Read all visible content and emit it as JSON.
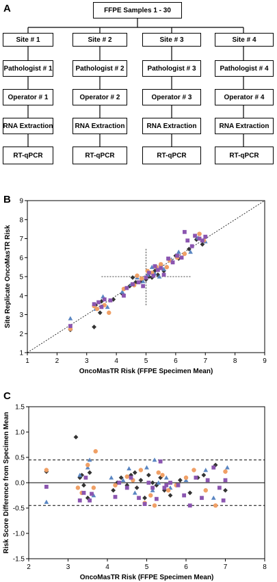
{
  "panels": {
    "a": "A",
    "b": "B",
    "c": "C"
  },
  "flowchart": {
    "top": "FFPE Samples 1 - 30",
    "columns": [
      [
        "Site # 1",
        "Pathologist # 1",
        "Operator # 1",
        "RNA Extraction",
        "RT-qPCR"
      ],
      [
        "Site # 2",
        "Pathologist # 2",
        "Operator # 2",
        "RNA Extraction",
        "RT-qPCR"
      ],
      [
        "Site # 3",
        "Pathologist # 3",
        "Operator # 3",
        "RNA Extraction",
        "RT-qPCR"
      ],
      [
        "Site # 4",
        "Pathologist # 4",
        "Operator # 4",
        "RNA Extraction",
        "RT-qPCR"
      ]
    ]
  },
  "colors": {
    "orange": "#f0a066",
    "blue": "#5a86c2",
    "purple": "#8b55b0",
    "black": "#333333"
  },
  "chart_data": [
    {
      "type": "scatter",
      "panel": "B",
      "xlabel": "OncoMasTR Risk (FFPE Specimen Mean)",
      "ylabel": "Site Replicate OncoMasTR Risk",
      "xlim": [
        1,
        9
      ],
      "ylim": [
        1,
        9
      ],
      "xticks": [
        "1",
        "2",
        "3",
        "4",
        "5",
        "6",
        "7",
        "8",
        "9"
      ],
      "yticks": [
        "1",
        "2",
        "3",
        "4",
        "5",
        "6",
        "7",
        "8",
        "9"
      ],
      "reference_lines": [
        "identity (y = x)",
        "crosshair at (5, 5)"
      ],
      "markers": {
        "site1": "diamond",
        "site2": "triangle",
        "site3": "circle",
        "site4": "square"
      },
      "series": [
        {
          "marker": "diamond",
          "color": "#333333",
          "points": [
            [
              2.45,
              2.2
            ],
            [
              3.25,
              2.35
            ],
            [
              3.3,
              3.5
            ],
            [
              3.45,
              3.1
            ],
            [
              3.5,
              3.7
            ],
            [
              3.9,
              3.8
            ],
            [
              4.2,
              4.1
            ],
            [
              4.45,
              4.5
            ],
            [
              4.55,
              4.95
            ],
            [
              4.65,
              4.7
            ],
            [
              4.85,
              4.75
            ],
            [
              5.0,
              4.85
            ],
            [
              5.1,
              5.0
            ],
            [
              5.2,
              4.95
            ],
            [
              5.3,
              5.3
            ],
            [
              5.4,
              5.1
            ],
            [
              5.5,
              5.6
            ],
            [
              5.6,
              5.3
            ],
            [
              6.0,
              6.1
            ],
            [
              6.1,
              5.95
            ],
            [
              6.45,
              6.45
            ],
            [
              6.7,
              6.95
            ],
            [
              6.9,
              6.7
            ]
          ]
        },
        {
          "marker": "triangle",
          "color": "#5a86c2",
          "points": [
            [
              2.45,
              2.8
            ],
            [
              3.3,
              3.3
            ],
            [
              3.55,
              3.95
            ],
            [
              3.7,
              3.4
            ],
            [
              4.2,
              4.2
            ],
            [
              4.5,
              4.6
            ],
            [
              4.7,
              4.95
            ],
            [
              4.9,
              4.75
            ],
            [
              5.05,
              5.1
            ],
            [
              5.2,
              5.5
            ],
            [
              5.3,
              5.15
            ],
            [
              5.45,
              5.0
            ],
            [
              5.6,
              5.4
            ],
            [
              5.85,
              5.9
            ],
            [
              6.1,
              6.3
            ],
            [
              6.5,
              6.3
            ],
            [
              6.75,
              7.05
            ],
            [
              7.0,
              6.85
            ]
          ]
        },
        {
          "marker": "circle",
          "color": "#f0a066",
          "points": [
            [
              2.45,
              2.25
            ],
            [
              3.25,
              3.45
            ],
            [
              3.35,
              3.3
            ],
            [
              3.6,
              3.5
            ],
            [
              3.75,
              3.1
            ],
            [
              4.25,
              4.35
            ],
            [
              4.6,
              4.55
            ],
            [
              4.7,
              5.05
            ],
            [
              4.85,
              4.9
            ],
            [
              5.05,
              5.3
            ],
            [
              5.2,
              5.2
            ],
            [
              5.35,
              5.5
            ],
            [
              5.5,
              5.65
            ],
            [
              5.7,
              5.5
            ],
            [
              5.8,
              5.85
            ],
            [
              6.05,
              6.0
            ],
            [
              6.3,
              6.2
            ],
            [
              6.8,
              7.25
            ],
            [
              6.95,
              6.9
            ]
          ]
        },
        {
          "marker": "square",
          "color": "#8b55b0",
          "points": [
            [
              2.45,
              2.4
            ],
            [
              3.25,
              3.55
            ],
            [
              3.4,
              3.65
            ],
            [
              3.5,
              3.4
            ],
            [
              3.6,
              3.8
            ],
            [
              3.8,
              3.75
            ],
            [
              4.25,
              4.0
            ],
            [
              4.35,
              4.4
            ],
            [
              4.55,
              4.6
            ],
            [
              4.75,
              4.7
            ],
            [
              4.9,
              4.5
            ],
            [
              5.0,
              4.95
            ],
            [
              5.1,
              5.2
            ],
            [
              5.25,
              5.05
            ],
            [
              5.3,
              5.55
            ],
            [
              5.4,
              5.35
            ],
            [
              5.5,
              5.45
            ],
            [
              5.6,
              5.1
            ],
            [
              5.75,
              5.95
            ],
            [
              5.9,
              5.75
            ],
            [
              6.05,
              6.1
            ],
            [
              6.2,
              6.0
            ],
            [
              6.4,
              6.9
            ],
            [
              6.55,
              6.6
            ],
            [
              6.65,
              7.15
            ],
            [
              6.8,
              7.0
            ],
            [
              6.9,
              6.9
            ],
            [
              7.0,
              7.1
            ],
            [
              6.3,
              7.35
            ]
          ]
        }
      ]
    },
    {
      "type": "scatter",
      "panel": "C",
      "xlabel": "OncoMasTR Risk (FFPE Specimen Mean)",
      "ylabel": "Risk Score Difference from Specimen Mean",
      "xlim": [
        2,
        8
      ],
      "ylim": [
        -1.5,
        1.5
      ],
      "xticks": [
        "2",
        "3",
        "4",
        "5",
        "6",
        "7",
        "8"
      ],
      "yticks": [
        "1.5",
        "1.0",
        "0.5",
        "0.0",
        "-0.5",
        "-1.0",
        "-1.5"
      ],
      "reference_lines": [
        "0.0 (solid)",
        "+0.45 (dashed)",
        "-0.45 (dashed)"
      ],
      "series": [
        {
          "marker": "diamond",
          "color": "#333333",
          "points": [
            [
              2.45,
              0.22
            ],
            [
              3.2,
              0.9
            ],
            [
              3.3,
              0.1
            ],
            [
              3.35,
              0.15
            ],
            [
              3.4,
              -0.05
            ],
            [
              3.5,
              -0.3
            ],
            [
              3.55,
              0.2
            ],
            [
              4.15,
              -0.15
            ],
            [
              4.25,
              0.0
            ],
            [
              4.35,
              0.1
            ],
            [
              4.5,
              -0.05
            ],
            [
              4.6,
              0.15
            ],
            [
              4.7,
              0.2
            ],
            [
              4.75,
              -0.1
            ],
            [
              4.85,
              0.05
            ],
            [
              4.95,
              -0.3
            ],
            [
              5.05,
              0.15
            ],
            [
              5.15,
              0.0
            ],
            [
              5.25,
              -0.05
            ],
            [
              5.35,
              0.1
            ],
            [
              5.45,
              -0.15
            ],
            [
              5.6,
              -0.25
            ],
            [
              5.85,
              0.05
            ],
            [
              6.1,
              -0.2
            ],
            [
              6.3,
              0.1
            ],
            [
              6.45,
              0.15
            ],
            [
              6.75,
              0.35
            ],
            [
              7.0,
              -0.15
            ]
          ]
        },
        {
          "marker": "triangle",
          "color": "#5a86c2",
          "points": [
            [
              2.45,
              -0.38
            ],
            [
              3.3,
              0.15
            ],
            [
              3.5,
              0.3
            ],
            [
              3.55,
              0.45
            ],
            [
              3.65,
              -0.25
            ],
            [
              4.1,
              0.1
            ],
            [
              4.4,
              0.05
            ],
            [
              4.55,
              0.28
            ],
            [
              4.7,
              -0.2
            ],
            [
              5.0,
              0.3
            ],
            [
              5.15,
              -0.15
            ],
            [
              5.2,
              0.45
            ],
            [
              5.3,
              0.0
            ],
            [
              5.5,
              0.1
            ],
            [
              5.6,
              -0.1
            ],
            [
              6.0,
              0.05
            ],
            [
              6.5,
              0.25
            ],
            [
              6.7,
              -0.3
            ],
            [
              7.05,
              0.3
            ]
          ]
        },
        {
          "marker": "circle",
          "color": "#f0a066",
          "points": [
            [
              2.45,
              0.25
            ],
            [
              3.25,
              -0.1
            ],
            [
              3.35,
              -0.2
            ],
            [
              3.5,
              0.35
            ],
            [
              3.7,
              0.62
            ],
            [
              3.65,
              -0.1
            ],
            [
              4.2,
              -0.05
            ],
            [
              4.5,
              0.12
            ],
            [
              4.65,
              0.05
            ],
            [
              4.85,
              0.25
            ],
            [
              4.95,
              -0.4
            ],
            [
              5.1,
              -0.25
            ],
            [
              5.2,
              -0.45
            ],
            [
              5.3,
              0.2
            ],
            [
              5.4,
              0.15
            ],
            [
              5.55,
              -0.15
            ],
            [
              5.75,
              -0.05
            ],
            [
              6.0,
              0.1
            ],
            [
              6.2,
              0.25
            ],
            [
              6.5,
              -0.15
            ],
            [
              6.75,
              -0.45
            ],
            [
              7.0,
              0.22
            ]
          ]
        },
        {
          "marker": "square",
          "color": "#8b55b0",
          "points": [
            [
              2.45,
              -0.08
            ],
            [
              3.3,
              -0.35
            ],
            [
              3.4,
              -0.2
            ],
            [
              3.45,
              0.1
            ],
            [
              3.55,
              -0.35
            ],
            [
              3.6,
              -0.22
            ],
            [
              4.2,
              -0.28
            ],
            [
              4.3,
              0.0
            ],
            [
              4.5,
              -0.1
            ],
            [
              4.6,
              0.1
            ],
            [
              4.8,
              -0.3
            ],
            [
              4.95,
              -0.42
            ],
            [
              5.05,
              0.0
            ],
            [
              5.15,
              -0.1
            ],
            [
              5.25,
              -0.32
            ],
            [
              5.35,
              0.42
            ],
            [
              5.45,
              -0.1
            ],
            [
              5.5,
              -0.05
            ],
            [
              5.6,
              0.0
            ],
            [
              5.8,
              -0.05
            ],
            [
              5.95,
              -0.25
            ],
            [
              6.1,
              -0.45
            ],
            [
              6.25,
              0.1
            ],
            [
              6.4,
              -0.3
            ],
            [
              6.55,
              0.05
            ],
            [
              6.7,
              0.3
            ],
            [
              6.85,
              -0.1
            ],
            [
              6.95,
              -0.35
            ],
            [
              7.0,
              0.05
            ]
          ]
        }
      ]
    }
  ]
}
